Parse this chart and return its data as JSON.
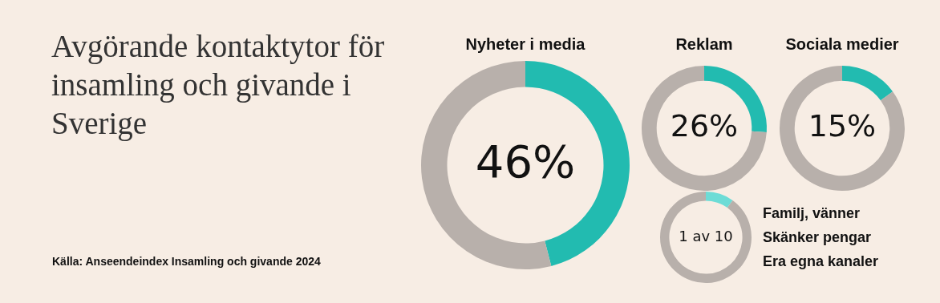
{
  "chart_data": [
    {
      "type": "other",
      "title": "Avgörande kontaktytor för insamling och givande i Sverige",
      "annotations": [
        "Källa: Anseendeindex Insamling och givande 2024"
      ]
    },
    {
      "type": "donut",
      "title": "Nyheter i media",
      "categories": [
        null,
        null
      ],
      "values": [
        46,
        54
      ],
      "colors": [
        "#22bbb0",
        "#b8b0ab"
      ],
      "value_labels": [
        "46%",
        null
      ],
      "legend": false
    },
    {
      "type": "donut",
      "title": "Reklam",
      "categories": [
        null,
        null
      ],
      "values": [
        26,
        74
      ],
      "colors": [
        "#22bbb0",
        "#b8b0ab"
      ],
      "value_labels": [
        "26%",
        null
      ],
      "legend": false
    },
    {
      "type": "donut",
      "title": "Sociala medier",
      "categories": [
        null,
        null
      ],
      "values": [
        15,
        85
      ],
      "colors": [
        "#22bbb0",
        "#b8b0ab"
      ],
      "value_labels": [
        "15%",
        null
      ],
      "legend": false
    },
    {
      "type": "donut",
      "categories": [
        null,
        null
      ],
      "values": [
        10,
        90
      ],
      "colors": [
        "#6ddcd6",
        "#b8b0ab"
      ],
      "value_labels": [
        "1 av 10",
        null
      ],
      "annotations": [
        "Familj, vänner",
        "Skänker pengar",
        "Era egna kanaler"
      ],
      "legend": false
    }
  ]
}
